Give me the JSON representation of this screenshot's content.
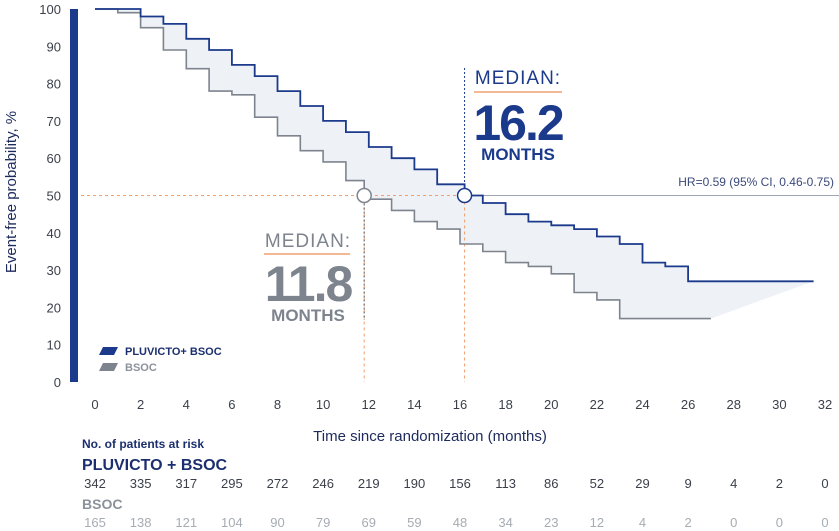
{
  "chart_data": {
    "type": "line",
    "subtype": "kaplan-meier",
    "ylabel": "Event-free probability, %",
    "xlabel": "Time since randomization (months)",
    "xlim": [
      0,
      32
    ],
    "ylim": [
      0,
      100
    ],
    "xticks": [
      0,
      2,
      4,
      6,
      8,
      10,
      12,
      14,
      16,
      18,
      20,
      22,
      24,
      26,
      28,
      30,
      32
    ],
    "yticks": [
      0,
      10,
      20,
      30,
      40,
      50,
      60,
      70,
      80,
      90,
      100
    ],
    "grid": false,
    "legend_position": "bottom-left",
    "series": [
      {
        "name": "PLUVICTO+ BSOC",
        "color": "#1b3a8c",
        "x": [
          0,
          1,
          2,
          3,
          4,
          5,
          6,
          7,
          8,
          9,
          10,
          11,
          12,
          13,
          14,
          15,
          16.2,
          17,
          18,
          19,
          20,
          21,
          22,
          23,
          24,
          25,
          26,
          27,
          28,
          29,
          30,
          31.5
        ],
        "y": [
          100,
          100,
          98,
          96,
          92,
          89,
          85,
          82,
          78,
          74,
          70,
          67,
          63,
          60,
          57,
          53,
          50,
          48,
          45,
          43,
          42,
          41,
          39,
          37,
          32,
          31,
          27,
          27,
          27,
          27,
          27,
          27
        ]
      },
      {
        "name": "BSOC",
        "color": "#7d848e",
        "x": [
          0,
          1,
          2,
          3,
          4,
          5,
          6,
          7,
          8,
          9,
          10,
          11,
          11.8,
          12,
          13,
          14,
          15,
          16,
          17,
          18,
          19,
          20,
          21,
          22,
          23,
          24,
          25,
          26,
          27
        ],
        "y": [
          100,
          99,
          95,
          89,
          84,
          78,
          77,
          71,
          66,
          62,
          59,
          54,
          50,
          49,
          46,
          43,
          41,
          37,
          35,
          32,
          31,
          29,
          24,
          22,
          17,
          17,
          17,
          17,
          17
        ]
      }
    ],
    "medians": [
      {
        "series": "PLUVICTO+ BSOC",
        "x": 16.2,
        "y": 50
      },
      {
        "series": "BSOC",
        "x": 11.8,
        "y": 50
      }
    ],
    "annotations": {
      "hr": "HR=0.59 (95% CI, 0.46-0.75)",
      "median_a": {
        "word": "MEDIAN:",
        "value": "16.2",
        "unit": "MONTHS"
      },
      "median_b": {
        "word": "MEDIAN:",
        "value": "11.8",
        "unit": "MONTHS"
      }
    },
    "legend": [
      {
        "label": "PLUVICTO+ BSOC",
        "color": "#1b3a8c"
      },
      {
        "label": "BSOC",
        "color": "#7d848e"
      }
    ],
    "accent_color": "#f0a070",
    "axis_bar_color": "#1b3a8c",
    "fill_color": "#eef2f7"
  },
  "risk_table": {
    "title": "No. of patients at risk",
    "group_a": {
      "label": "PLUVICTO + BSOC",
      "values": [
        "342",
        "335",
        "317",
        "295",
        "272",
        "246",
        "219",
        "190",
        "156",
        "113",
        "86",
        "52",
        "29",
        "9",
        "4",
        "2",
        "0"
      ]
    },
    "group_b": {
      "label": "BSOC",
      "values": [
        "165",
        "138",
        "121",
        "104",
        "90",
        "79",
        "69",
        "59",
        "48",
        "34",
        "23",
        "12",
        "4",
        "2",
        "0",
        "0",
        "0"
      ]
    }
  }
}
